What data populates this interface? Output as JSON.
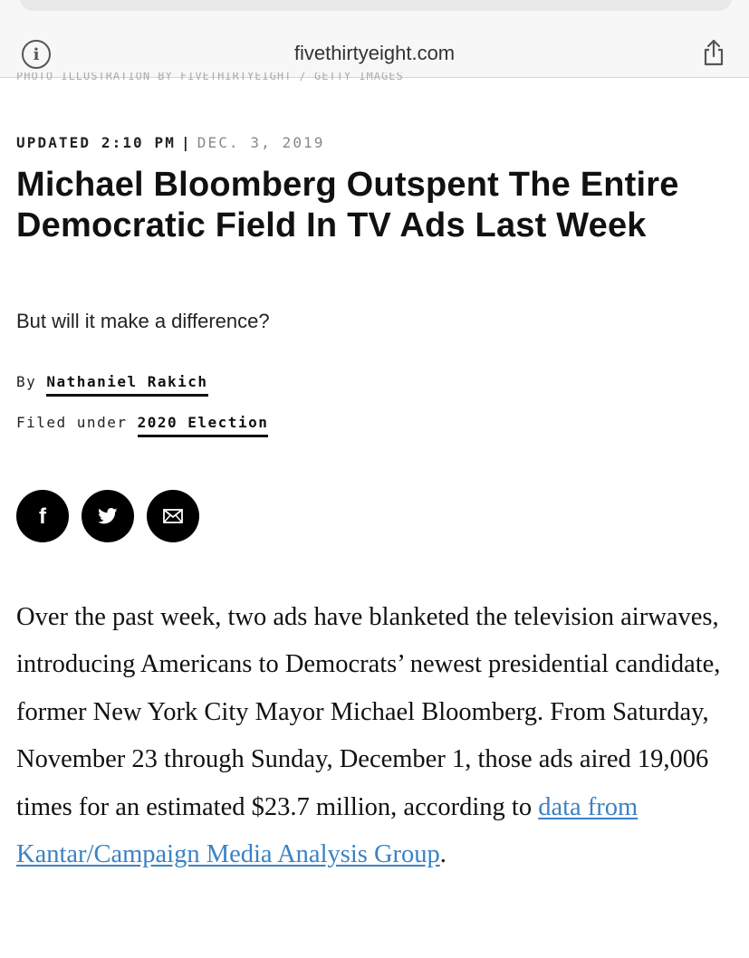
{
  "browser": {
    "url": "fivethirtyeight.com",
    "icons": {
      "info": "info-icon",
      "share": "share-icon"
    },
    "peek_text": "PHOTO ILLUSTRATION BY FIVETHIRTYEIGHT / GETTY IMAGES"
  },
  "article": {
    "updated_label": "UPDATED 2:10 PM",
    "separator": "|",
    "date": "DEC. 3, 2019",
    "title": "Michael Bloomberg Outspent The Entire Democratic Field In TV Ads Last Week",
    "subtitle": "But will it make a difference?",
    "byline_prefix": "By",
    "author": "Nathaniel Rakich",
    "filed_prefix": "Filed under",
    "category": "2020 Election",
    "share": {
      "facebook_glyph": "f",
      "icons": {
        "facebook": "facebook-icon",
        "twitter": "twitter-icon",
        "email": "email-icon"
      }
    },
    "paragraph": {
      "text_before": "Over the past week, two ads have blanketed the television airwaves, introducing Americans to Democrats’ newest presidential candidate, former New York City Mayor Michael Bloomberg. From Saturday, November 23 through Sunday, December 1, those ads aired 19,006 times for an estimated $23.7 million, according to ",
      "link_text": "data from Kantar/Campaign Media Analysis Group",
      "text_after": "."
    }
  },
  "colors": {
    "link": "#3b82c4",
    "text": "#111111",
    "date_gray": "#888888",
    "chrome_bg": "#f7f7f7"
  }
}
